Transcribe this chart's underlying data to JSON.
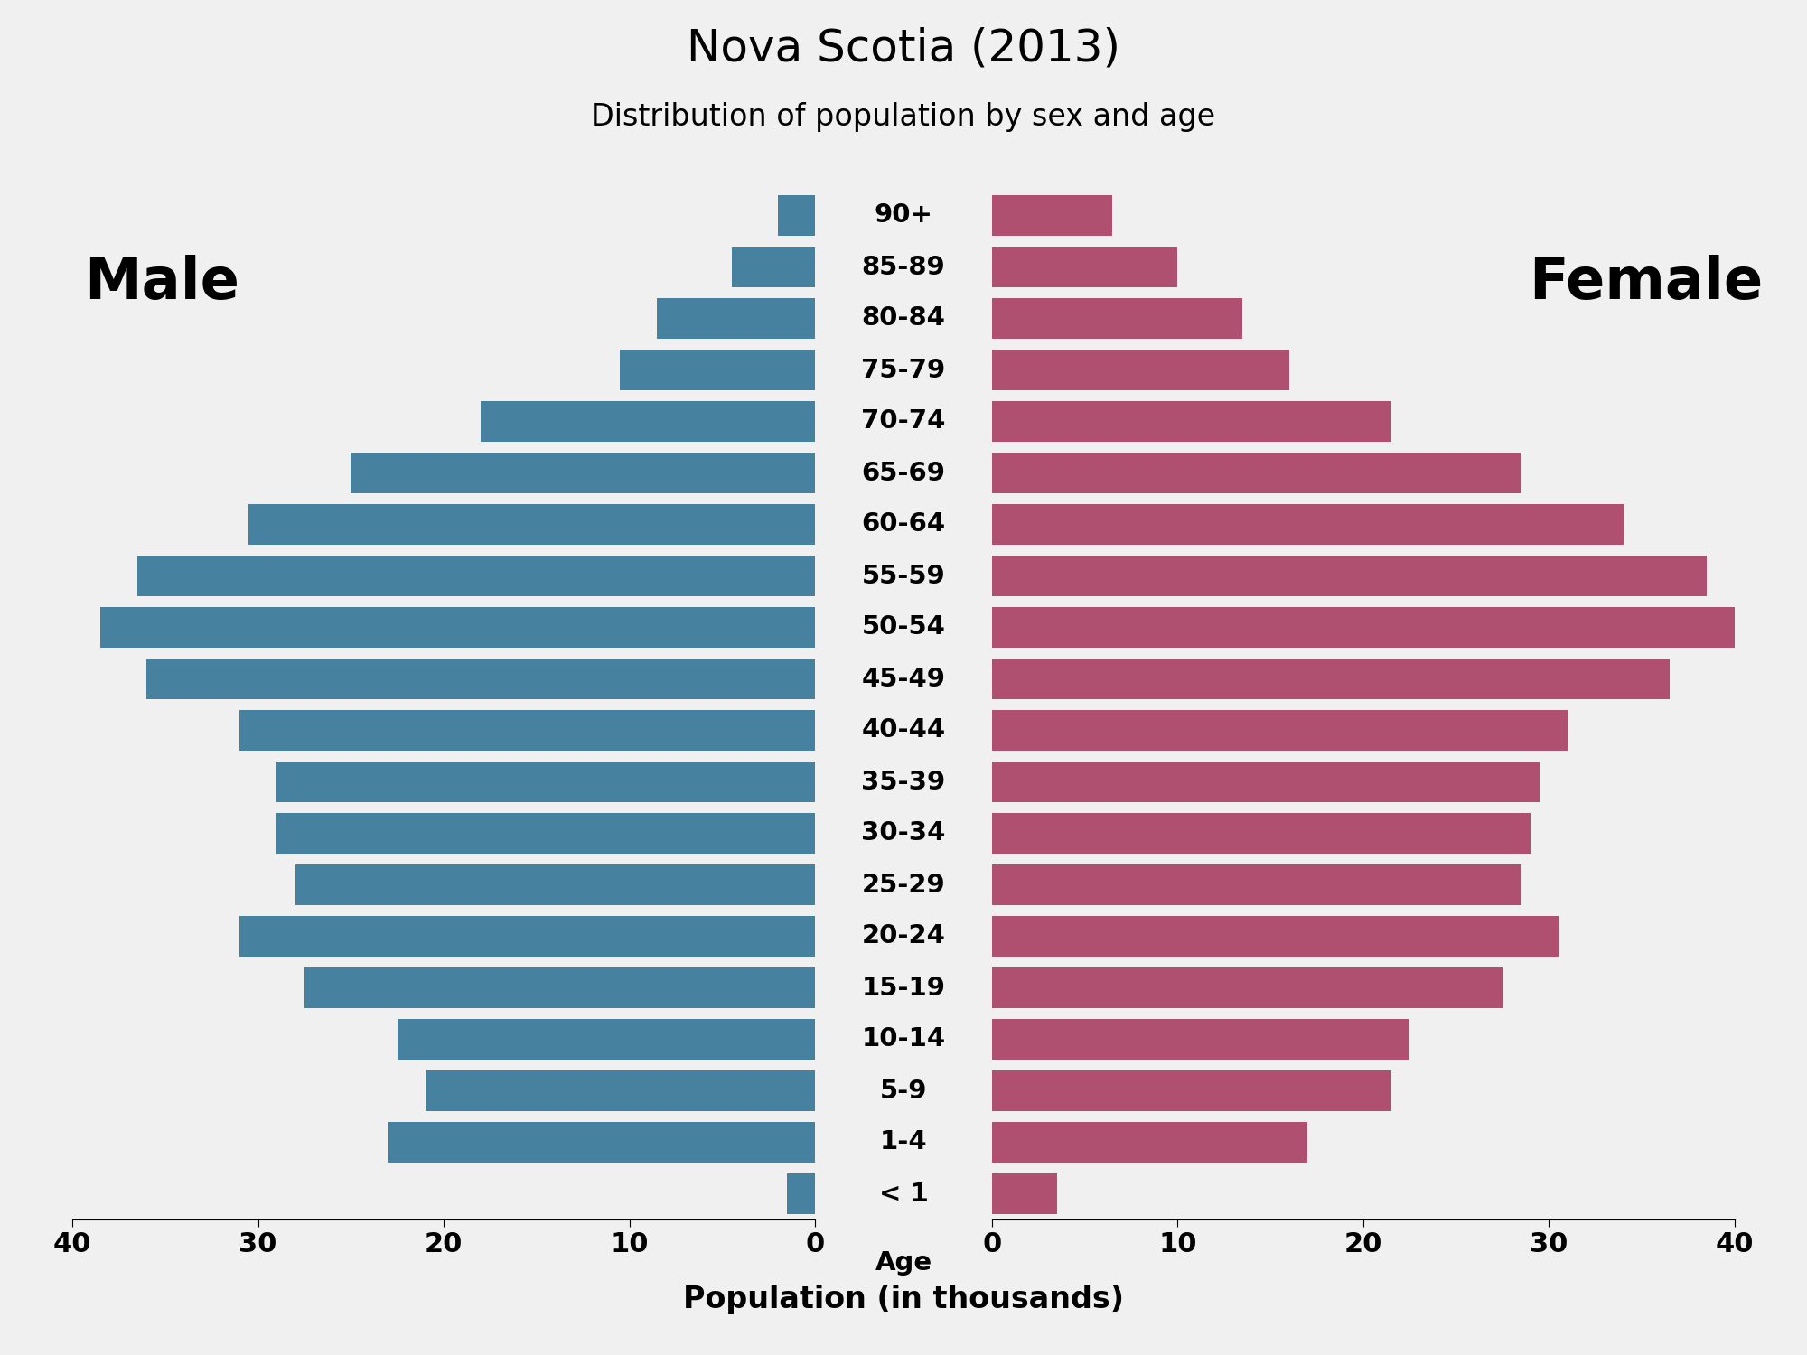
{
  "title": "Nova Scotia (2013)",
  "subtitle": "Distribution of population by sex and age",
  "xlabel": "Population (in thousands)",
  "male_label": "Male",
  "female_label": "Female",
  "age_groups": [
    "< 1",
    "1-4",
    "5-9",
    "10-14",
    "15-19",
    "20-24",
    "25-29",
    "30-34",
    "35-39",
    "40-44",
    "45-49",
    "50-54",
    "55-59",
    "60-64",
    "65-69",
    "70-74",
    "75-79",
    "80-84",
    "85-89",
    "90+"
  ],
  "male_values": [
    1.5,
    23.0,
    21.0,
    22.5,
    27.5,
    31.0,
    28.0,
    29.0,
    29.0,
    31.0,
    36.0,
    38.5,
    36.5,
    30.5,
    25.0,
    18.0,
    10.5,
    8.5,
    4.5,
    2.0
  ],
  "female_values": [
    3.5,
    17.0,
    21.5,
    22.5,
    27.5,
    30.5,
    28.5,
    29.0,
    29.5,
    31.0,
    36.5,
    40.0,
    38.5,
    34.0,
    28.5,
    21.5,
    16.0,
    13.5,
    10.0,
    6.5
  ],
  "male_color": "#4682a0",
  "female_color": "#b05070",
  "background_color": "#f0f0f0",
  "xlim": 40,
  "xticks_male": [
    40,
    30,
    20,
    10,
    0
  ],
  "xticks_female": [
    0,
    10,
    20,
    30,
    40
  ],
  "title_fontsize": 36,
  "subtitle_fontsize": 24,
  "label_fontsize": 46,
  "xlabel_fontsize": 24,
  "tick_fontsize": 22,
  "age_fontsize": 21
}
